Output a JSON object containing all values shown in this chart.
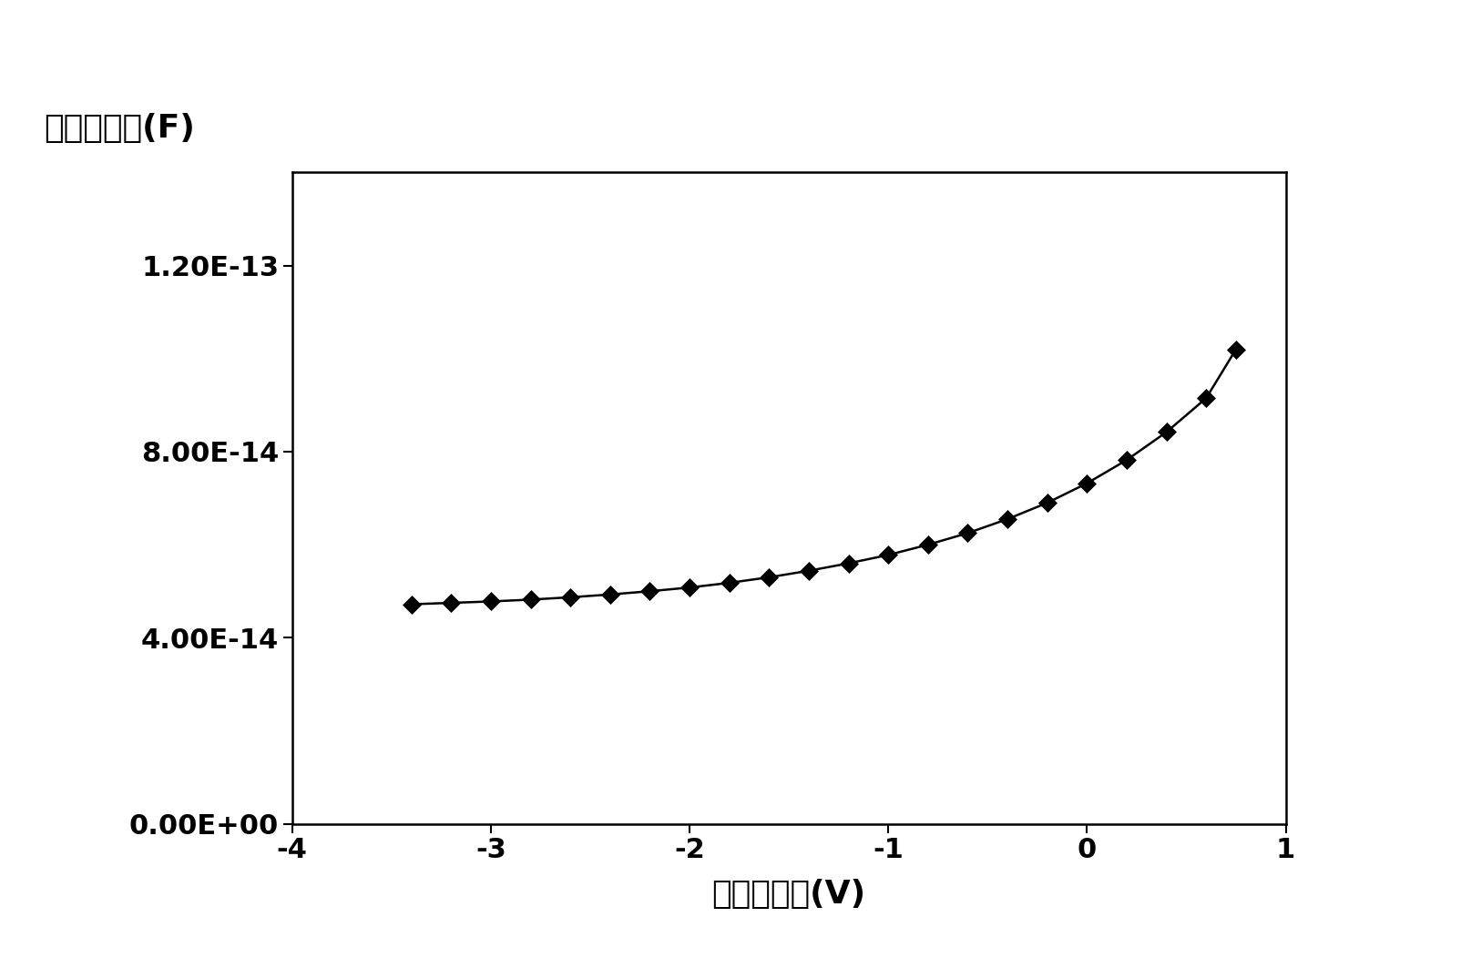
{
  "x_data": [
    -3.4,
    -3.2,
    -3.0,
    -2.8,
    -2.6,
    -2.4,
    -2.2,
    -2.0,
    -1.8,
    -1.6,
    -1.4,
    -1.2,
    -1.0,
    -0.8,
    -0.6,
    -0.4,
    -0.2,
    0.0,
    0.2,
    0.4,
    0.6,
    0.75
  ],
  "y_data": [
    4.72e-14,
    4.75e-14,
    4.78e-14,
    4.82e-14,
    4.87e-14,
    4.93e-14,
    5e-14,
    5.08e-14,
    5.18e-14,
    5.3e-14,
    5.44e-14,
    5.6e-14,
    5.78e-14,
    6e-14,
    6.25e-14,
    6.55e-14,
    6.9e-14,
    7.32e-14,
    7.82e-14,
    8.42e-14,
    9.15e-14,
    1.02e-13
  ],
  "xlabel": "集电结偏压(V)",
  "ylabel": "集电结电容(F)",
  "xlim": [
    -4,
    1
  ],
  "ylim": [
    0,
    1.4e-13
  ],
  "xticks": [
    -4,
    -3,
    -2,
    -1,
    0,
    1
  ],
  "yticks": [
    0.0,
    4e-14,
    8e-14,
    1.2e-13
  ],
  "ytick_labels": [
    "0.00E+00",
    "4.00E-14",
    "8.00E-14",
    "1.20E-13"
  ],
  "marker_color": "black",
  "line_color": "black",
  "background_color": "white",
  "plot_bg_color": "white",
  "font_size_axis_label": 26,
  "font_size_tick_label": 22,
  "fig_width": 16.04,
  "fig_height": 10.52,
  "dpi": 100
}
